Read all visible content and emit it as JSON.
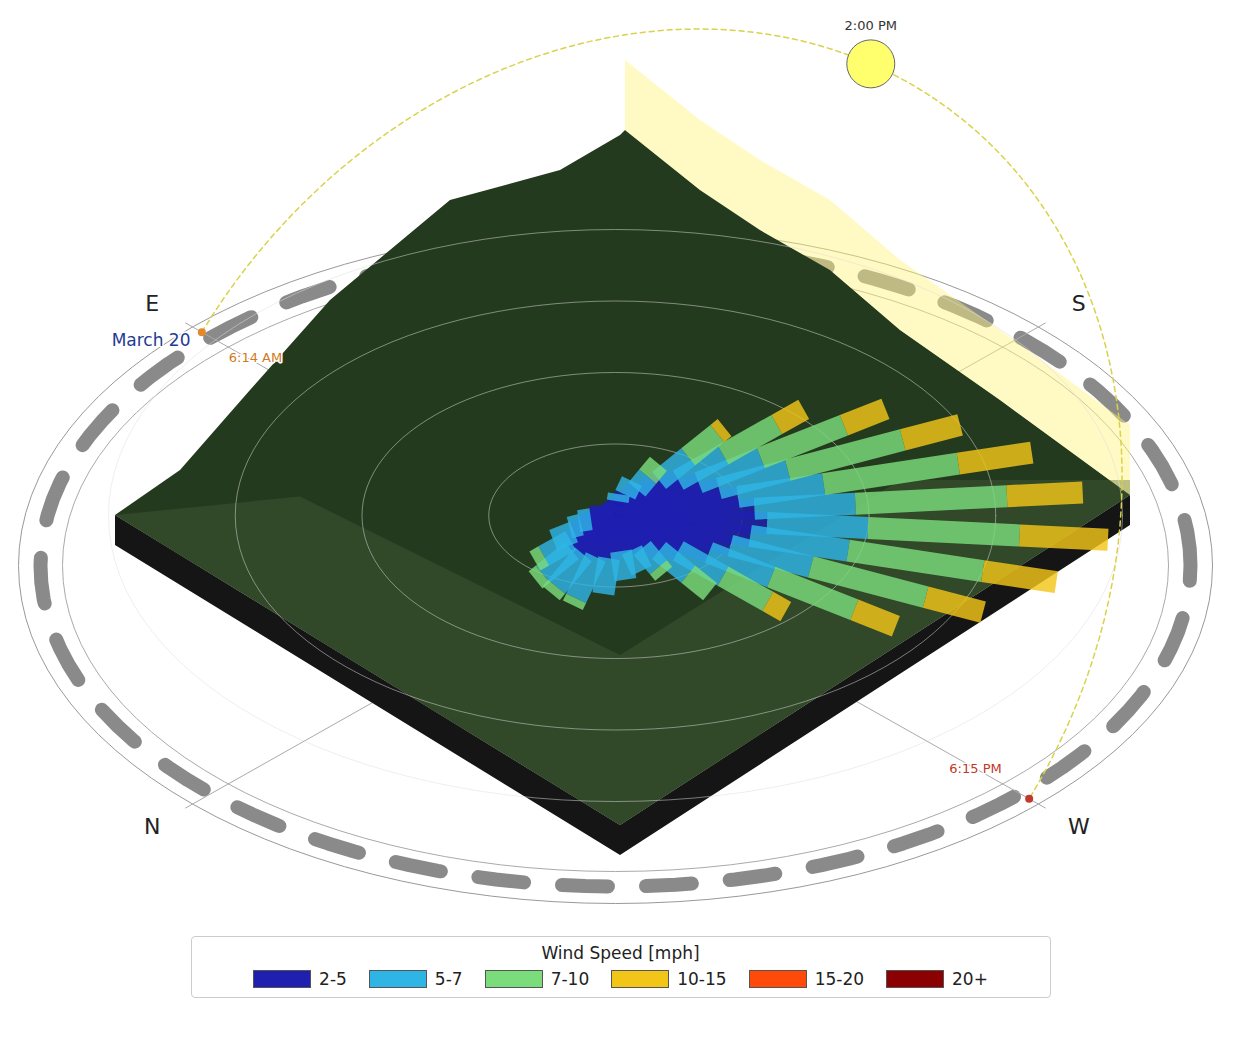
{
  "chart_data": {
    "type": "wind_rose",
    "legend_title": "Wind Speed [mph]",
    "legend": "bottom",
    "x": [
      0,
      10,
      20,
      30,
      40,
      50,
      60,
      70,
      80,
      90,
      100,
      110,
      120,
      130,
      140,
      150,
      160,
      170,
      180,
      190,
      200,
      210,
      220,
      230,
      240,
      250,
      260,
      270,
      280,
      290,
      300,
      310,
      320,
      330,
      340,
      350
    ],
    "series": [
      {
        "name": "2-5",
        "color": "#1f1fb0",
        "values": [
          2.5,
          2,
          1.5,
          1,
          1,
          0.5,
          0.5,
          0.5,
          0.5,
          0.5,
          0.5,
          0.5,
          0.5,
          1,
          1,
          1.5,
          2,
          3,
          3.5,
          4,
          4.5,
          5,
          5.5,
          6,
          5.5,
          5,
          4.5,
          3.5,
          3,
          2.5,
          2.5,
          2.5,
          3,
          3,
          3,
          3
        ]
      },
      {
        "name": "5-7",
        "color": "#2fb4e6",
        "values": [
          1.5,
          1,
          0.5,
          0.5,
          0,
          0,
          0,
          0,
          0,
          0,
          0,
          0,
          0,
          0,
          0.5,
          1,
          1,
          2,
          2.5,
          3,
          3,
          3.5,
          4,
          4,
          4,
          3.5,
          3,
          2.5,
          2,
          1.5,
          1.5,
          2,
          2.5,
          3,
          2.5,
          2
        ]
      },
      {
        "name": "7-10",
        "color": "#7bdc7b",
        "values": [
          0.5,
          0,
          0,
          0,
          0,
          0,
          0,
          0,
          0,
          0,
          0,
          0,
          0,
          0,
          0,
          0,
          1,
          2,
          3,
          4,
          5,
          5.5,
          6,
          6,
          5.5,
          5,
          4,
          2.5,
          1.5,
          0.5,
          0,
          0,
          0,
          0.5,
          0.5,
          0.5
        ]
      },
      {
        "name": "10-15",
        "color": "#f2c618",
        "values": [
          0,
          0,
          0,
          0,
          0,
          0,
          0,
          0,
          0,
          0,
          0,
          0,
          0,
          0,
          0,
          0,
          0,
          0.5,
          1.5,
          2,
          2.5,
          3,
          3,
          3.5,
          3,
          2.5,
          2,
          1,
          0,
          0,
          0,
          0,
          0,
          0,
          0,
          0
        ]
      },
      {
        "name": "15-20",
        "color": "#ff4a0a",
        "values": [
          0,
          0,
          0,
          0,
          0,
          0,
          0,
          0,
          0,
          0,
          0,
          0,
          0,
          0,
          0,
          0,
          0,
          0,
          0,
          0,
          0,
          0,
          0,
          0,
          0,
          0,
          0,
          0,
          0,
          0,
          0,
          0,
          0,
          0,
          0,
          0
        ]
      },
      {
        "name": "20+",
        "color": "#8b0000",
        "values": [
          0,
          0,
          0,
          0,
          0,
          0,
          0,
          0,
          0,
          0,
          0,
          0,
          0,
          0,
          0,
          0,
          0,
          0,
          0,
          0,
          0,
          0,
          0,
          0,
          0,
          0,
          0,
          0,
          0,
          0,
          0,
          0,
          0,
          0,
          0,
          0
        ]
      }
    ],
    "rlim": [
      0,
      20
    ],
    "rticks": [
      5,
      10,
      15,
      20
    ],
    "tick_labels": false,
    "directions": [
      {
        "label": "N",
        "bearing": 0
      },
      {
        "label": "E",
        "bearing": 90
      },
      {
        "label": "S",
        "bearing": 180
      },
      {
        "label": "W",
        "bearing": 270
      }
    ],
    "sun_path": {
      "date": "March 20",
      "sunrise": "6:14 AM",
      "sunset": "6:15 PM",
      "sun_time": "2:00 PM"
    }
  }
}
